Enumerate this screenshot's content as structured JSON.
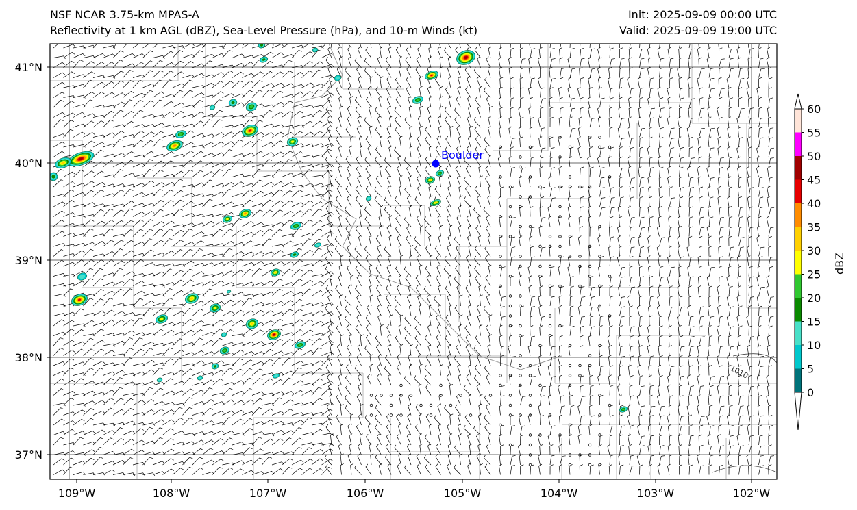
{
  "header": {
    "model": "NSF NCAR 3.75-km MPAS-A",
    "fields": "Reflectivity at 1 km AGL (dBZ), Sea-Level Pressure (hPa), and 10-m Winds (kt)",
    "init": "Init: 2025-09-09 00:00 UTC",
    "valid": "Valid: 2025-09-09 19:00 UTC"
  },
  "map": {
    "lat_labels": [
      "41°N",
      "40°N",
      "39°N",
      "38°N",
      "37°N"
    ],
    "lon_labels": [
      "109°W",
      "108°W",
      "107°W",
      "106°W",
      "105°W",
      "104°W",
      "103°W",
      "102°W"
    ],
    "city": {
      "name": "Boulder",
      "color": "#0000ff"
    },
    "isobar_label": "1010",
    "colors": {
      "state_border": "#888888",
      "county_border": "#b8b8b8",
      "barb": "#000000"
    }
  },
  "colorbar": {
    "label": "dBZ",
    "ticks": [
      "0",
      "5",
      "10",
      "15",
      "20",
      "25",
      "30",
      "35",
      "40",
      "45",
      "50",
      "55",
      "60"
    ],
    "colors": [
      "#00737a",
      "#00c8cc",
      "#48e0c8",
      "#0a8a00",
      "#30c830",
      "#ffff00",
      "#ffd000",
      "#ff8c00",
      "#e60000",
      "#a00000",
      "#ff00ff",
      "#ffe4d8"
    ]
  }
}
